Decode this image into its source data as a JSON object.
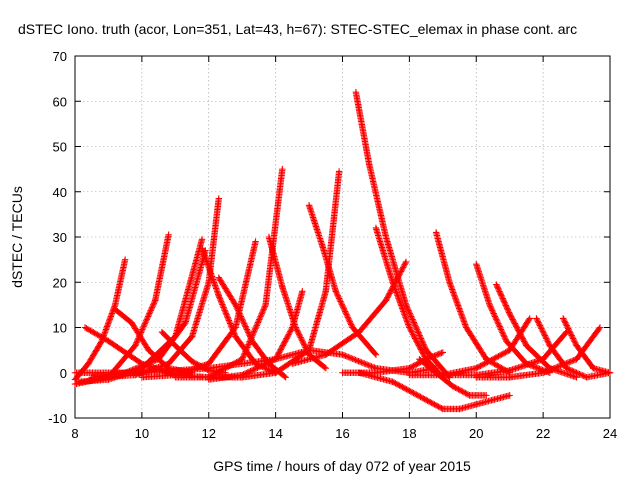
{
  "chart_data": {
    "type": "scatter",
    "title": "dSTEC Iono. truth (acor, Lon=351, Lat=43, h=67): STEC-STEC_elemax in phase cont. arc",
    "xlabel": "GPS time / hours of day 072 of year 2015",
    "ylabel": "dSTEC  / TECUs",
    "xlim": [
      8,
      24
    ],
    "ylim": [
      -10,
      70
    ],
    "x_ticks": [
      8,
      10,
      12,
      14,
      16,
      18,
      20,
      22,
      24
    ],
    "y_ticks": [
      -10,
      0,
      10,
      20,
      30,
      40,
      50,
      60,
      70
    ],
    "x_tick_labels": [
      "8",
      "10",
      "12",
      "14",
      "16",
      "18",
      "20",
      "22",
      "24"
    ],
    "y_tick_labels": [
      "-10",
      "0",
      "10",
      "20",
      "30",
      "40",
      "50",
      "60",
      "70"
    ],
    "grid": true,
    "marker": "plus",
    "color": "#ff0000",
    "series": [
      {
        "x": [
          8.0,
          8.4,
          8.8,
          9.2,
          9.5
        ],
        "y": [
          -1.5,
          2.0,
          7.0,
          15.0,
          25.0
        ]
      },
      {
        "x": [
          8.0,
          9.0,
          9.8,
          10.4,
          10.8
        ],
        "y": [
          -2.5,
          -1.0,
          6.0,
          16.0,
          30.5
        ]
      },
      {
        "x": [
          8.1,
          9.0,
          10.0,
          11.0,
          11.8
        ],
        "y": [
          -2.0,
          -1.5,
          1.0,
          8.0,
          29.5
        ]
      },
      {
        "x": [
          8.5,
          9.5,
          10.5,
          11.3,
          11.9
        ],
        "y": [
          -1.0,
          0.0,
          3.0,
          11.0,
          27.0
        ]
      },
      {
        "x": [
          8.8,
          9.8,
          10.8,
          11.5,
          12.0,
          12.3
        ],
        "y": [
          -1.0,
          -0.5,
          2.0,
          8.0,
          20.0,
          38.5
        ]
      },
      {
        "x": [
          10.0,
          11.0,
          12.0,
          12.8,
          13.4
        ],
        "y": [
          -1.0,
          -0.5,
          2.0,
          10.0,
          29.0
        ]
      },
      {
        "x": [
          11.0,
          12.0,
          13.0,
          13.7,
          14.2
        ],
        "y": [
          -1.0,
          -1.0,
          3.0,
          15.0,
          45.0
        ]
      },
      {
        "x": [
          12.0,
          13.0,
          14.0,
          14.5,
          14.8
        ],
        "y": [
          -1.5,
          -0.5,
          3.0,
          10.0,
          18.0
        ]
      },
      {
        "x": [
          13.0,
          14.0,
          15.0,
          15.5,
          15.9
        ],
        "y": [
          -1.0,
          0.0,
          5.0,
          18.0,
          44.5
        ]
      },
      {
        "x": [
          14.5,
          15.5,
          16.5,
          17.3,
          17.9
        ],
        "y": [
          2.0,
          4.0,
          9.0,
          16.0,
          24.5
        ]
      },
      {
        "x": [
          16.0,
          17.0,
          18.0,
          18.5,
          19.0
        ],
        "y": [
          0.0,
          0.0,
          1.0,
          3.0,
          4.5
        ]
      },
      {
        "x": [
          18.0,
          19.0,
          20.0,
          21.0,
          21.6
        ],
        "y": [
          -0.5,
          -0.5,
          1.0,
          5.0,
          12.0
        ]
      },
      {
        "x": [
          19.0,
          20.0,
          21.0,
          22.0,
          22.7
        ],
        "y": [
          -0.5,
          -0.5,
          0.5,
          3.0,
          9.0
        ]
      },
      {
        "x": [
          20.0,
          21.0,
          22.0,
          23.0,
          23.7
        ],
        "y": [
          -1.0,
          -1.0,
          0.0,
          3.0,
          10.0
        ]
      },
      {
        "x": [
          8.3,
          9.0,
          10.0,
          11.0,
          12.0,
          13.0
        ],
        "y": [
          10.0,
          7.0,
          2.0,
          -0.5,
          -1.0,
          -1.0
        ]
      },
      {
        "x": [
          9.2,
          9.7,
          10.2,
          10.8,
          11.5
        ],
        "y": [
          14.0,
          11.0,
          5.0,
          1.0,
          0.0
        ]
      },
      {
        "x": [
          10.6,
          11.0,
          11.5,
          12.0,
          12.5
        ],
        "y": [
          9.0,
          6.0,
          2.5,
          0.5,
          0.0
        ]
      },
      {
        "x": [
          11.8,
          12.3,
          12.8,
          13.4,
          14.0
        ],
        "y": [
          27.5,
          17.0,
          8.0,
          2.0,
          0.0
        ]
      },
      {
        "x": [
          12.3,
          12.8,
          13.3,
          13.8,
          14.3
        ],
        "y": [
          21.0,
          15.0,
          7.0,
          2.0,
          -1.0
        ]
      },
      {
        "x": [
          13.8,
          14.2,
          14.6,
          15.0,
          15.5
        ],
        "y": [
          30.0,
          19.0,
          10.0,
          4.0,
          1.0
        ]
      },
      {
        "x": [
          15.0,
          15.4,
          15.8,
          16.3,
          17.0
        ],
        "y": [
          37.0,
          28.0,
          18.0,
          10.0,
          4.0
        ]
      },
      {
        "x": [
          16.4,
          16.8,
          17.3,
          17.9,
          18.5,
          19.2
        ],
        "y": [
          62.0,
          46.0,
          30.0,
          15.0,
          5.0,
          -1.0
        ]
      },
      {
        "x": [
          17.0,
          17.5,
          18.0,
          18.5,
          19.0
        ],
        "y": [
          32.0,
          20.0,
          10.0,
          3.0,
          -1.0
        ]
      },
      {
        "x": [
          18.3,
          18.8,
          19.3,
          19.8,
          20.3
        ],
        "y": [
          3.0,
          0.0,
          -3.0,
          -5.0,
          -5.0
        ]
      },
      {
        "x": [
          18.8,
          19.2,
          19.7,
          20.3,
          21.0
        ],
        "y": [
          31.0,
          20.0,
          10.0,
          3.0,
          0.0
        ]
      },
      {
        "x": [
          20.0,
          20.4,
          20.9,
          21.5,
          22.2
        ],
        "y": [
          24.0,
          15.0,
          7.0,
          2.0,
          0.0
        ]
      },
      {
        "x": [
          20.6,
          21.0,
          21.5,
          22.2,
          23.0
        ],
        "y": [
          19.5,
          13.0,
          6.0,
          1.0,
          -1.0
        ]
      },
      {
        "x": [
          21.8,
          22.2,
          22.7,
          23.3,
          24.0
        ],
        "y": [
          12.0,
          6.0,
          1.0,
          -1.0,
          0.0
        ]
      },
      {
        "x": [
          22.6,
          23.0,
          23.5,
          24.0
        ],
        "y": [
          12.0,
          6.0,
          1.0,
          0.0
        ]
      },
      {
        "x": [
          8.0,
          10.0,
          12.0,
          14.0,
          15.0
        ],
        "y": [
          0.0,
          0.0,
          1.0,
          3.0,
          5.0
        ]
      },
      {
        "x": [
          15.0,
          16.0,
          17.0,
          18.0,
          18.8
        ],
        "y": [
          5.0,
          4.0,
          1.0,
          0.0,
          1.0
        ]
      },
      {
        "x": [
          16.5,
          17.5,
          18.5,
          19.0,
          19.5
        ],
        "y": [
          0.0,
          -2.0,
          -6.0,
          -8.0,
          -8.0
        ]
      },
      {
        "x": [
          19.5,
          20.0,
          20.5,
          21.0
        ],
        "y": [
          -8.0,
          -7.0,
          -6.0,
          -5.0
        ]
      }
    ]
  }
}
